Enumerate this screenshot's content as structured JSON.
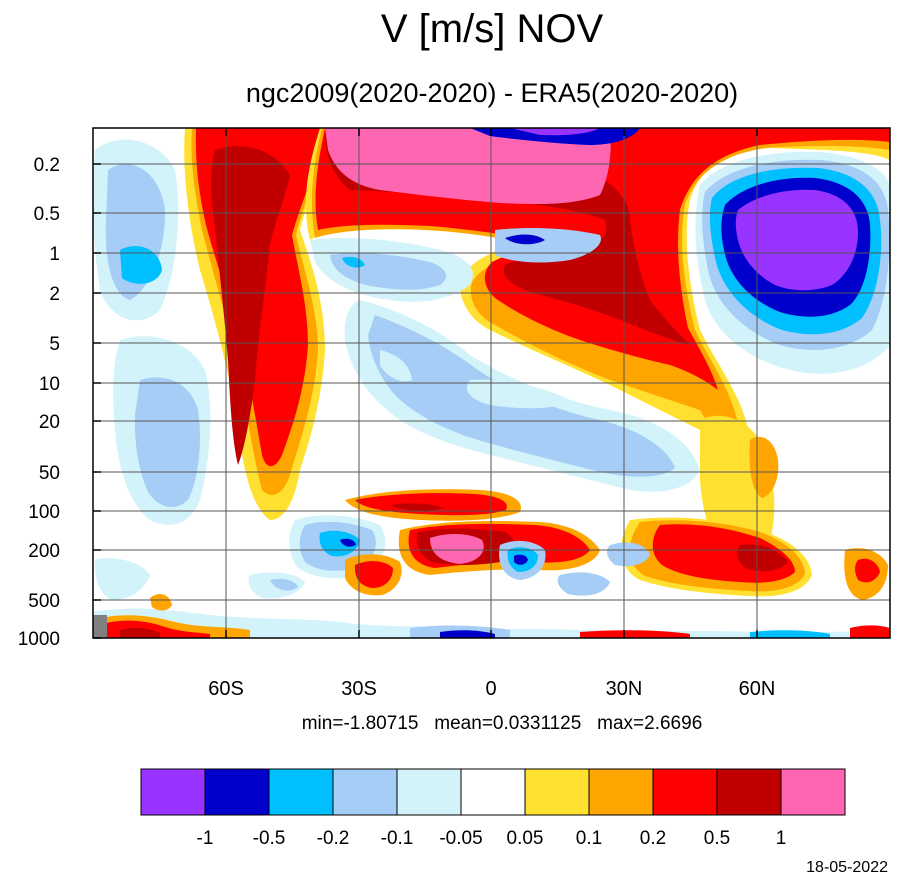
{
  "title": "V [m/s] NOV",
  "subtitle": "ngc2009(2020-2020) - ERA5(2020-2020)",
  "stats": "min=-1.80715   mean=0.0331125   max=2.6696",
  "date": "18-05-2022",
  "chart_data": {
    "type": "heatmap",
    "title": "V [m/s] NOV",
    "subtitle": "ngc2009(2020-2020) - ERA5(2020-2020)",
    "x_ticks": [
      "60S",
      "30S",
      "0",
      "30N",
      "60N"
    ],
    "x_tick_values": [
      -60,
      -30,
      0,
      30,
      60
    ],
    "xlim": [
      -90,
      90
    ],
    "y_ticks": [
      "0.2",
      "0.5",
      "1",
      "2",
      "5",
      "10",
      "20",
      "50",
      "100",
      "200",
      "500",
      "1000"
    ],
    "y_tick_values": [
      0.2,
      0.5,
      1,
      2,
      5,
      10,
      20,
      50,
      100,
      200,
      500,
      1000
    ],
    "yscale": "log",
    "ylim": [
      1000,
      0.1
    ],
    "grid": true,
    "stats": {
      "min": -1.80715,
      "mean": 0.0331125,
      "max": 2.6696
    },
    "colorbar": {
      "colors": [
        "#9933ff",
        "#0000cc",
        "#00bfff",
        "#a6cdf5",
        "#d3f3fb",
        "#ffffff",
        "#ffe030",
        "#ffa500",
        "#ff0000",
        "#c00000",
        "#ff66b2"
      ],
      "labels": [
        "-1",
        "-0.5",
        "-0.2",
        "-0.1",
        "-0.05",
        "0.05",
        "0.1",
        "0.2",
        "0.5",
        "1"
      ]
    }
  }
}
